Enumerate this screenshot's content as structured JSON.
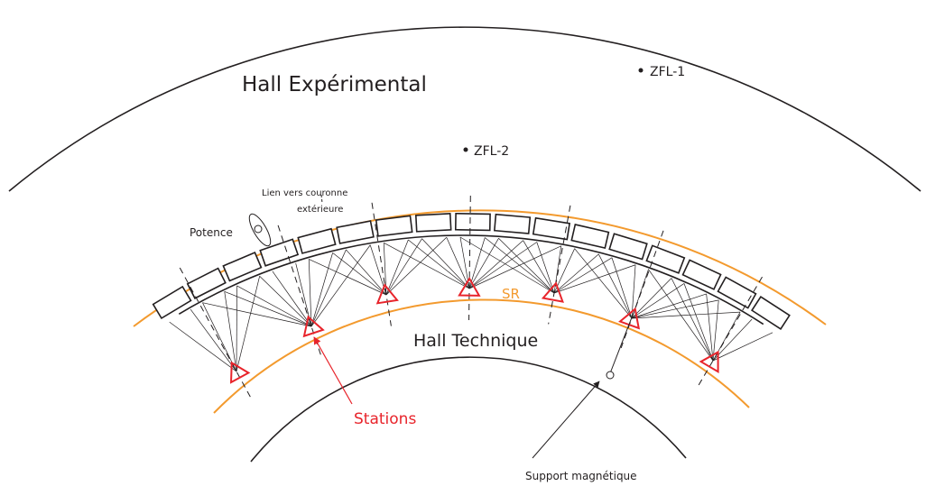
{
  "labels": {
    "hall_experimental": "Hall Expérimental",
    "zfl1": "ZFL-1",
    "zfl2": "ZFL-2",
    "lien_line1": "Lien vers couronne",
    "lien_line2": "extérieure",
    "potence": "Potence",
    "sr": "SR",
    "hall_technique": "Hall Technique",
    "stations": "Stations",
    "support": "Support magnétique"
  }
}
